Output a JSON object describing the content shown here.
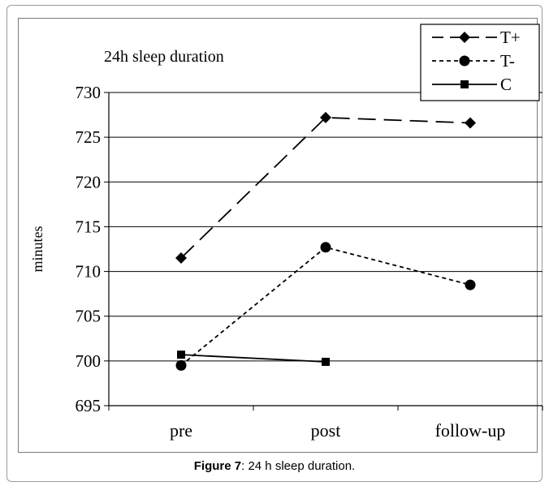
{
  "chart_data": {
    "type": "line",
    "title": "24h  sleep duration",
    "xlabel": "",
    "ylabel": "minutes",
    "categories": [
      "pre",
      "post",
      "follow-up"
    ],
    "ylim": [
      695,
      730
    ],
    "yticks": [
      "695",
      "700",
      "705",
      "710",
      "715",
      "720",
      "725",
      "730"
    ],
    "grid": true,
    "legend_position": "top-right",
    "series": [
      {
        "name": "T+",
        "values": [
          711.5,
          727.2,
          726.6
        ],
        "line_style": "long-dash",
        "marker": "diamond",
        "color": "#000000"
      },
      {
        "name": "T-",
        "values": [
          699.5,
          712.7,
          708.5
        ],
        "line_style": "short-dash",
        "marker": "circle",
        "color": "#000000"
      },
      {
        "name": "C",
        "values": [
          700.7,
          699.9,
          null
        ],
        "line_style": "solid",
        "marker": "square",
        "color": "#000000"
      }
    ]
  },
  "caption": {
    "label": "Figure 7",
    "text": ": 24 h sleep duration."
  }
}
